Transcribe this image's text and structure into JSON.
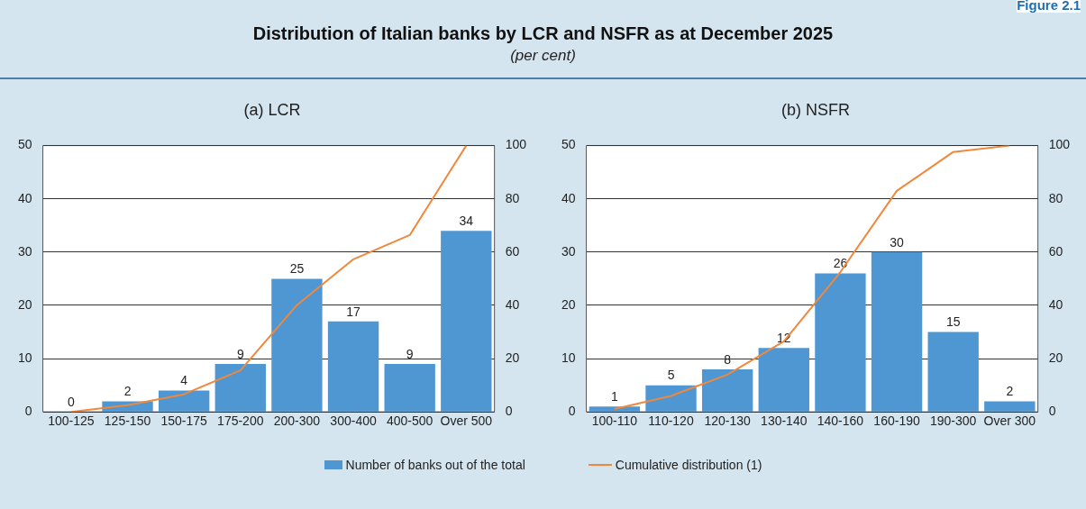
{
  "chart_data": [
    {
      "type": "other",
      "title": "Distribution of Italian banks by LCR and NSFR as at December 2025",
      "subtitle": "(per cent)",
      "annotations": [
        "Figure 2.1"
      ]
    },
    {
      "type": "bar",
      "title": "(a) LCR",
      "categories": [
        "100-125",
        "125-150",
        "150-175",
        "175-200",
        "200-300",
        "300-400",
        "400-500",
        "Over 500"
      ],
      "series": [
        {
          "name": "Number of banks out of the total",
          "color": "#4f97d3",
          "values": [
            0,
            2,
            4,
            9,
            25,
            17,
            9,
            34
          ],
          "value_labels": [
            "0",
            "2",
            "4",
            "9",
            "25",
            "17",
            "9",
            "34"
          ]
        },
        {
          "name": "Cumulative distribution (1)",
          "type": "line",
          "axis": "y2",
          "color": "#f0883c",
          "values": [
            0,
            2.5,
            6.6,
            15.6,
            40.1,
            57.3,
            66.4,
            100
          ]
        }
      ],
      "ylim": [
        0,
        50
      ],
      "yticks": [
        0,
        10,
        20,
        30,
        40,
        50
      ],
      "y2lim": [
        0,
        100
      ],
      "y2ticks": [
        0,
        20,
        40,
        60,
        80,
        100
      ],
      "grid": "y",
      "legend": "bottom",
      "marker": "none"
    },
    {
      "type": "bar",
      "title": "(b) NSFR",
      "categories": [
        "100-110",
        "110-120",
        "120-130",
        "130-140",
        "140-160",
        "160-190",
        "190-300",
        "Over 300"
      ],
      "series": [
        {
          "color": "#4f97d3",
          "values": [
            1,
            5,
            8,
            12,
            26,
            30,
            15,
            2
          ],
          "value_labels": [
            "1",
            "5",
            "8",
            "12",
            "26",
            "30",
            "15",
            "2"
          ]
        },
        {
          "type": "line",
          "axis": "y2",
          "color": "#f0883c",
          "values": [
            1.1,
            6,
            14,
            26.5,
            52.5,
            83,
            97.6,
            100
          ]
        }
      ],
      "ylim": [
        0,
        50
      ],
      "yticks": [
        0,
        10,
        20,
        30,
        40,
        50
      ],
      "y2lim": [
        0,
        100
      ],
      "y2ticks": [
        0,
        20,
        40,
        60,
        80,
        100
      ],
      "grid": "y",
      "marker": "none"
    }
  ]
}
